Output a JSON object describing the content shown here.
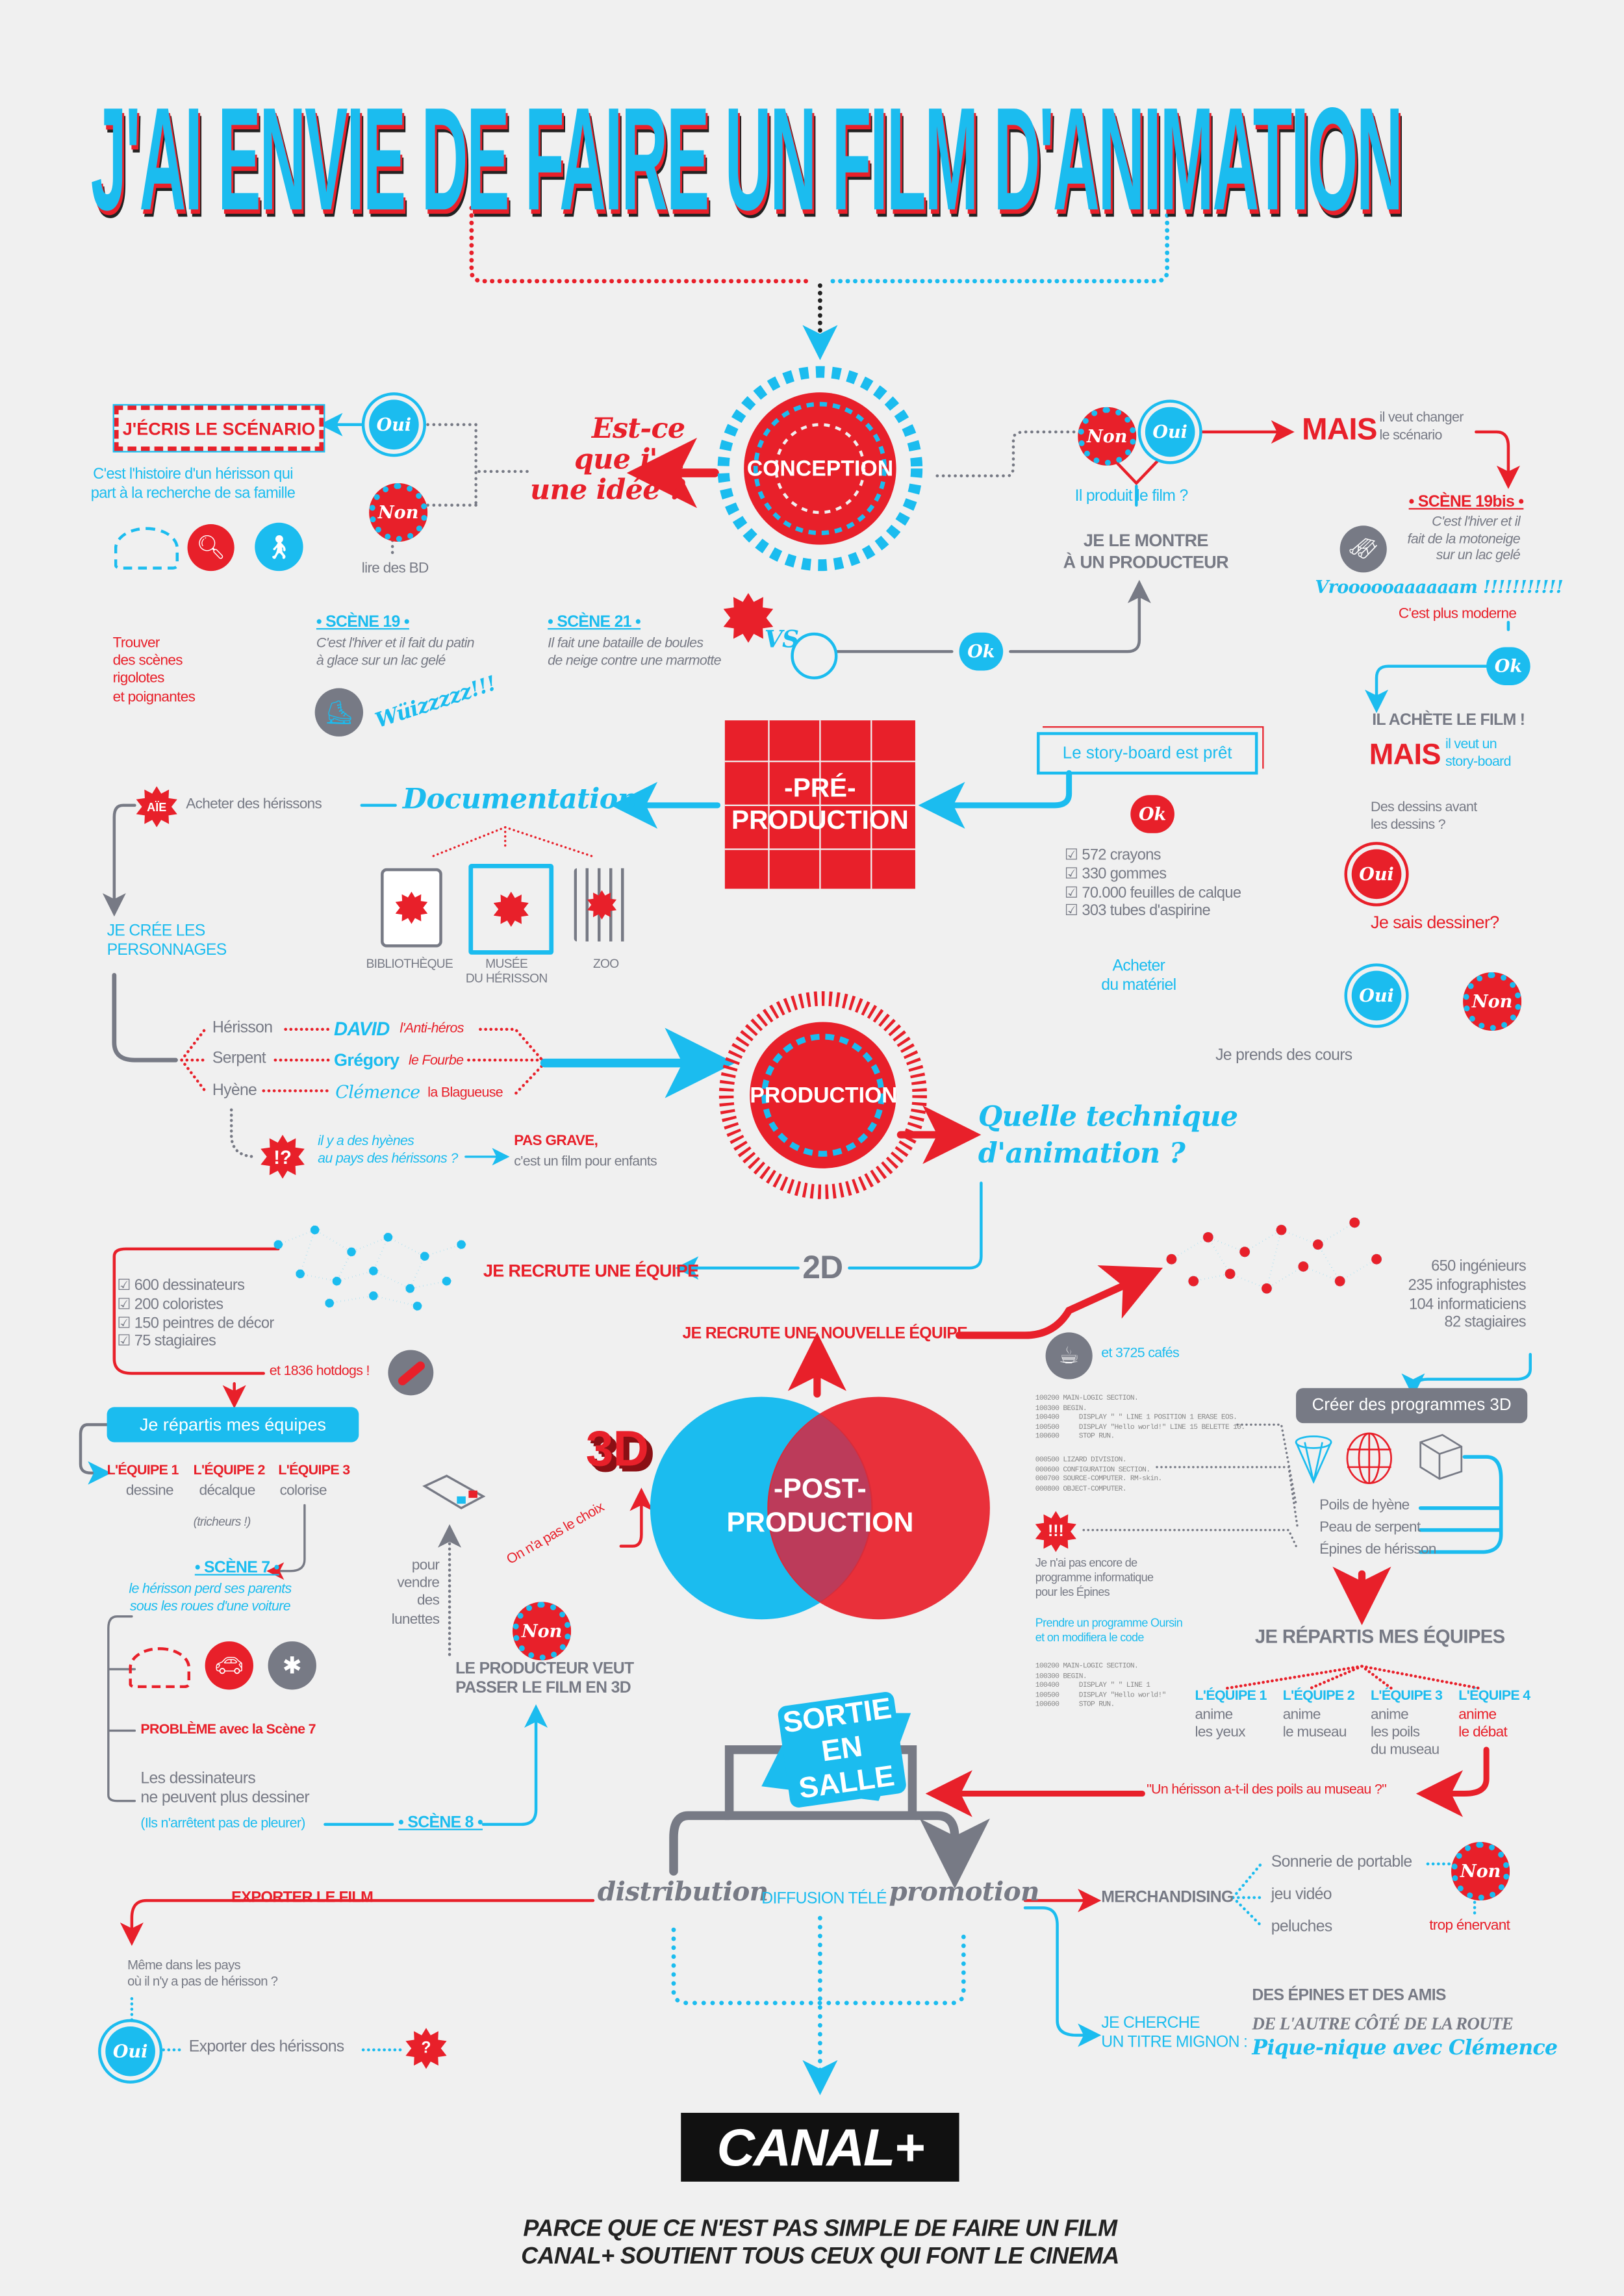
{
  "colors": {
    "red": "#e8202a",
    "blue": "#1bbcef",
    "gray": "#777a85",
    "background": "#f0f0f0"
  },
  "title": "J'AI ENVIE DE FAIRE UN FILM D'ANIMATION",
  "stages": {
    "conception": "CONCEPTION",
    "preproduction": "-PRÉ-\nPRODUCTION",
    "production": "PRODUCTION",
    "postproduction": "-POST-\nPRODUCTION",
    "sortie": "SORTIE\nEN SALLE"
  },
  "badges": {
    "oui": "Oui",
    "non": "Non",
    "ok": "Ok",
    "vs": "VS",
    "aie": "AÏE",
    "interrobang": "!?",
    "alert": "!!!",
    "question": "?",
    "three_d": "3D"
  },
  "conception": {
    "question": "Est-ce\nque j'ai\nune idée ?",
    "write_script": "J'ÉCRIS LE SCÉNARIO",
    "read_comics": "lire des BD",
    "story": "C'est l'histoire d'un hérisson qui\npart à la recherche de sa famille",
    "find_scenes": "Trouver\ndes scènes\nrigolotes\net poignantes",
    "scene19_title": "• SCÈNE 19 •",
    "scene19_text": "C'est l'hiver et il fait du patin\nà glace sur un lac gelé",
    "scene21_title": "• SCÈNE 21 •",
    "scene21_text": "Il fait une bataille de boules\nde neige contre une marmotte",
    "whizz": "Wüizzzzz!!!",
    "produce_question": "Il produit le film ?",
    "show_producer": "JE LE MONTRE\nÀ UN PRODUCTEUR",
    "but": "MAIS",
    "wants_change": "il veut changer\nle scénario",
    "scene19bis_title": "• SCÈNE 19bis •",
    "scene19bis_text": "C'est l'hiver et il\nfait de la motoneige\nsur un lac gelé",
    "vroom": "Vroooooaaaaaam !!!!!!!!!!!",
    "more_modern": "C'est plus moderne"
  },
  "preproduction": {
    "buys_film": "IL ACHÈTE LE FILM !",
    "but": "MAIS",
    "wants_storyboard": "il veut un\nstory-board",
    "drawings_before": "Des dessins avant\nles dessins ?",
    "can_draw": "Je sais dessiner?",
    "take_lessons": "Je prends des cours",
    "buy_material": "Acheter\ndu matériel",
    "supplies": [
      "572 crayons",
      "330 gommes",
      "70.000 feuilles de calque",
      "303 tubes d'aspirine"
    ],
    "storyboard_ready": "Le story-board est prêt",
    "documentation": "Documentation",
    "buy_hedgehogs": "Acheter des hérissons",
    "create_characters": "JE CRÉE LES\nPERSONNAGES",
    "places": [
      "BIBLIOTHÈQUE",
      "MUSÉE\nDU HÉRISSON",
      "ZOO"
    ]
  },
  "characters": [
    {
      "animal": "Hérisson",
      "name": "DAVID",
      "trait": "l'Anti-héros"
    },
    {
      "animal": "Serpent",
      "name": "Grégory",
      "trait": "le Fourbe"
    },
    {
      "animal": "Hyène",
      "name": "Clémence",
      "trait": "la Blagueuse"
    }
  ],
  "production": {
    "hyenas_question": "il y a des hyènes\nau pays des hérissons ?",
    "not_serious": "PAS GRAVE,",
    "kids_film": "c'est un film pour enfants",
    "technique": "Quelle technique\nd'animation ?",
    "two_d": "2D",
    "recruit_team": "JE RECRUTE UNE ÉQUIPE",
    "team_2d": [
      "600 dessinateurs",
      "200 coloristes",
      "150 peintres de décor",
      "75 stagiaires"
    ],
    "hotdogs": "et 1836 hotdogs !",
    "split_teams": "Je répartis mes équipes",
    "teams": [
      {
        "name": "L'ÉQUIPE 1",
        "task": "dessine"
      },
      {
        "name": "L'ÉQUIPE 2",
        "task": "décalque"
      },
      {
        "name": "L'ÉQUIPE 3",
        "task": "colorise"
      }
    ],
    "cheaters": "(tricheurs !)",
    "scene7_title": "• SCÈNE 7 •",
    "scene7_text": "le hérisson perd ses parents\nsous les roues d'une voiture",
    "problem": "PROBLÈME avec la Scène 7",
    "cant_draw": "Les dessinateurs\nne peuvent plus dessiner",
    "crying": "(Ils n'arrêtent pas de pleurer)",
    "scene8_title": "• SCÈNE 8 •",
    "producer_3d": "LE PRODUCTEUR VEUT\nPASSER LE FILM EN 3D",
    "no_choice": "On n'a pas le choix",
    "sell_glasses": "pour\nvendre\ndes\nlunettes"
  },
  "postproduction": {
    "recruit_new": "JE RECRUTE UNE NOUVELLE ÉQUIPE",
    "team_3d": [
      "650 ingénieurs",
      "235 infographistes",
      "104 informaticiens",
      "82 stagiaires"
    ],
    "coffees": "et 3725 cafés",
    "create_programs": "Créer des programmes 3D",
    "code_blocks": [
      "100200 MAIN-LOGIC SECTION.\n100300 BEGIN.\n100400     DISPLAY \" \" LINE 1 POSITION 1 ERASE EOS.\n100500     DISPLAY \"Hello world!\" LINE 15 BELETTE 10.\n100600     STOP RUN.",
      "000500 LIZARD DIVISION.\n000600 CONFIGURATION SECTION.\n000700 SOURCE-COMPUTER. RM-skin.\n000800 OBJECT-COMPUTER.",
      "100200 MAIN-LOGIC SECTION.\n100300 BEGIN.\n100400     DISPLAY \" \" LINE 1\n100500     DISPLAY \"Hello world!\"\n100600     STOP RUN."
    ],
    "textures": [
      "Poils de hyène",
      "Peau de serpent",
      "Épines de hérisson"
    ],
    "no_program": "Je n'ai pas encore de\nprogramme informatique\npour les Épines",
    "oursin": "Prendre un programme Oursin\net on modifiera le code",
    "split_teams": "JE RÉPARTIS MES ÉQUIPES",
    "teams": [
      {
        "name": "L'ÉQUIPE 1",
        "task": "anime\nles yeux"
      },
      {
        "name": "L'ÉQUIPE 2",
        "task": "anime\nle museau"
      },
      {
        "name": "L'ÉQUIPE 3",
        "task": "anime\nles poils\ndu museau"
      },
      {
        "name": "L'ÉQUIPE 4",
        "task": "anime\nle débat"
      }
    ],
    "debate": "\"Un hérisson  a-t-il des poils au museau ?\""
  },
  "release": {
    "distribution": "distribution",
    "tv": "DIFFUSION TÉLÉ",
    "promotion": "promotion",
    "export_film": "EXPORTER LE FILM",
    "no_hedgehog_countries": "Même dans les pays\noù il n'y a pas de hérisson ?",
    "export_hedgehogs": "Exporter des hérissons",
    "merchandising": "MERCHANDISING",
    "merch_items": [
      "Sonnerie de portable",
      "jeu vidéo",
      "peluches"
    ],
    "too_annoying": "trop énervant",
    "cute_title": "JE CHERCHE\nUN TITRE MIGNON :",
    "title_options": [
      "DES ÉPINES ET DES AMIS",
      "DE L'AUTRE CÔTÉ DE LA ROUTE",
      "Pique-nique avec Clémence"
    ]
  },
  "footer": {
    "logo": "CANAL+",
    "line1": "PARCE QUE CE N'EST PAS SIMPLE DE FAIRE UN FILM",
    "line2": "CANAL+ SOUTIENT TOUS CEUX QUI FONT LE CINEMA"
  }
}
